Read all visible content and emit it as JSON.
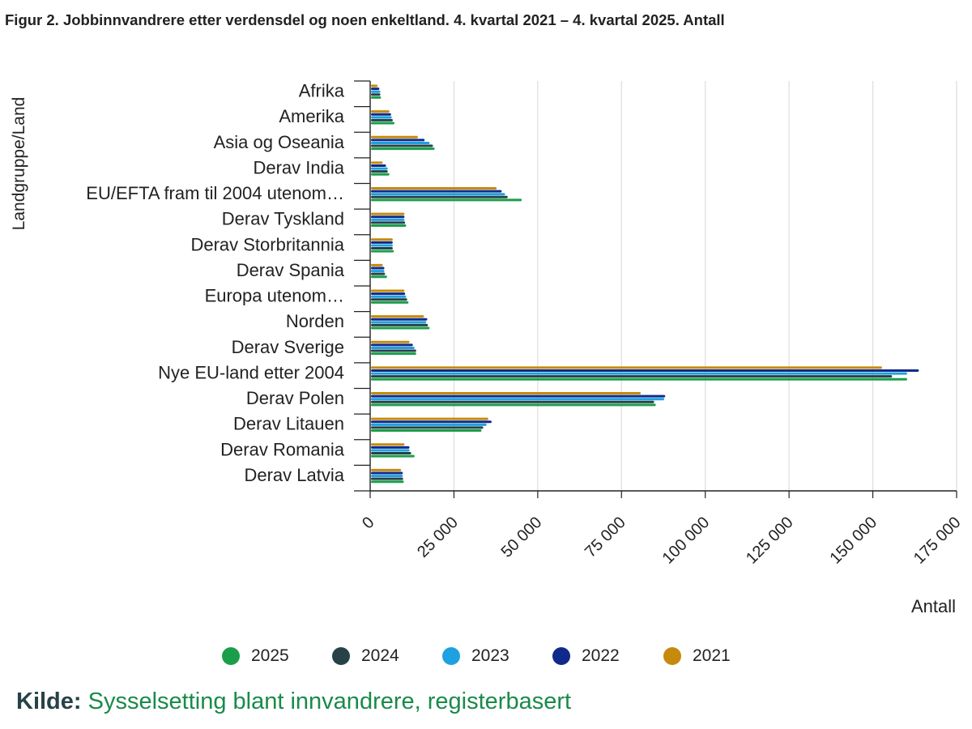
{
  "title": "Figur 2. Jobbinnvandrere etter verdensdel og noen enkeltland. 4. kvartal 2021 – 4. kvartal 2025. Antall",
  "source": {
    "label": "Kilde:",
    "link_text": "Sysselsetting blant innvandrere, registerbasert"
  },
  "legend": [
    {
      "name": "2025",
      "color": "#1a9e4a"
    },
    {
      "name": "2024",
      "color": "#274247"
    },
    {
      "name": "2023",
      "color": "#1da1e0"
    },
    {
      "name": "2022",
      "color": "#0f2a8a"
    },
    {
      "name": "2021",
      "color": "#c68a0c"
    }
  ],
  "chart_data": {
    "type": "bar",
    "orientation": "horizontal",
    "xlabel": "Antall",
    "ylabel": "Landgruppe/Land",
    "xlim": [
      0,
      175000
    ],
    "x_ticks": [
      "0",
      "25 000",
      "50 000",
      "75 000",
      "100 000",
      "125 000",
      "150 000",
      "175 000"
    ],
    "x_tick_values": [
      0,
      25000,
      50000,
      75000,
      100000,
      125000,
      150000,
      175000
    ],
    "grid": true,
    "legend_position": "bottom",
    "categories": [
      "Afrika",
      "Amerika",
      "Asia og Oseania",
      "Derav India",
      "EU/EFTA fram til 2004 utenom…",
      "Derav Tyskland",
      "Derav Storbritannia",
      "Derav Spania",
      "Europa utenom…",
      "Norden",
      "Derav Sverige",
      "Nye EU-land etter 2004",
      "Derav Polen",
      "Derav Litauen",
      "Derav Romania",
      "Derav Latvia"
    ],
    "series": [
      {
        "name": "2021",
        "values": [
          2000,
          5500,
          14000,
          3500,
          37500,
          10000,
          6500,
          3500,
          10000,
          15800,
          11500,
          152500,
          80500,
          35000,
          10000,
          9000
        ]
      },
      {
        "name": "2022",
        "values": [
          2500,
          6000,
          16000,
          4500,
          39000,
          10000,
          6500,
          4000,
          10200,
          16800,
          12500,
          163500,
          87800,
          36000,
          11500,
          9500
        ]
      },
      {
        "name": "2023",
        "values": [
          2800,
          6200,
          17500,
          5000,
          40000,
          10000,
          6500,
          4000,
          10500,
          16500,
          13000,
          160000,
          87500,
          34500,
          11500,
          9500
        ]
      },
      {
        "name": "2024",
        "values": [
          2800,
          6500,
          18500,
          5000,
          40800,
          10200,
          6500,
          4200,
          10800,
          17000,
          13500,
          155500,
          84500,
          33500,
          12000,
          9600
        ]
      },
      {
        "name": "2025",
        "values": [
          3000,
          7000,
          19000,
          5500,
          45000,
          10500,
          6800,
          4800,
          11200,
          17500,
          13500,
          160000,
          85000,
          33000,
          13000,
          9800
        ]
      }
    ]
  }
}
